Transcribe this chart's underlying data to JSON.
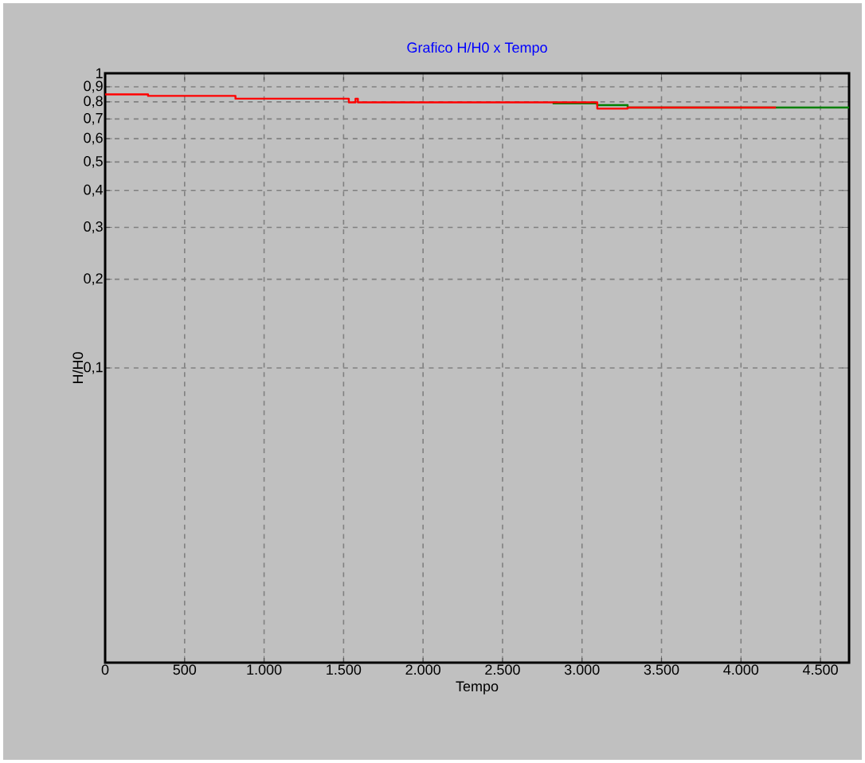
{
  "chart_data": {
    "type": "step",
    "title": "Grafico H/H0 x Tempo",
    "xlabel": "Tempo",
    "ylabel": "H/H0",
    "log": "y",
    "grid": true,
    "xlim": [
      0,
      4680
    ],
    "ylim": [
      0.01,
      1
    ],
    "xticks": [
      0,
      {
        "value": 500,
        "label": "500"
      },
      {
        "value": 1000,
        "label": "1.000"
      },
      {
        "value": 1500,
        "label": "1.500"
      },
      {
        "value": 2000,
        "label": "2.000"
      },
      {
        "value": 2500,
        "label": "2.500"
      },
      {
        "value": 3000,
        "label": "3.000"
      },
      {
        "value": 3500,
        "label": "3.500"
      },
      {
        "value": 4000,
        "label": "4.000"
      },
      {
        "value": 4500,
        "label": "4.500"
      }
    ],
    "yticks": [
      {
        "value": 0.1,
        "label": "0,1"
      },
      {
        "value": 0.2,
        "label": "0,2"
      },
      {
        "value": 0.3,
        "label": "0,3"
      },
      {
        "value": 0.4,
        "label": "0,4"
      },
      {
        "value": 0.5,
        "label": "0,5"
      },
      {
        "value": 0.6,
        "label": "0,6"
      },
      {
        "value": 0.7,
        "label": "0,7"
      },
      {
        "value": 0.8,
        "label": "0,8"
      },
      {
        "value": 0.9,
        "label": "0,9"
      },
      1
    ],
    "series": [
      {
        "color": "#ff0000",
        "x": [
          0,
          270,
          820,
          1533,
          1575,
          1590,
          3096,
          3287,
          4220
        ],
        "values": [
          0.848,
          0.838,
          0.82,
          0.797,
          0.82,
          0.797,
          0.759,
          0.765,
          0.765
        ]
      },
      {
        "color": "#008000",
        "x": [
          2815,
          3096,
          3287,
          4680
        ],
        "values": [
          0.79,
          0.78,
          0.765,
          0.765
        ]
      }
    ]
  }
}
